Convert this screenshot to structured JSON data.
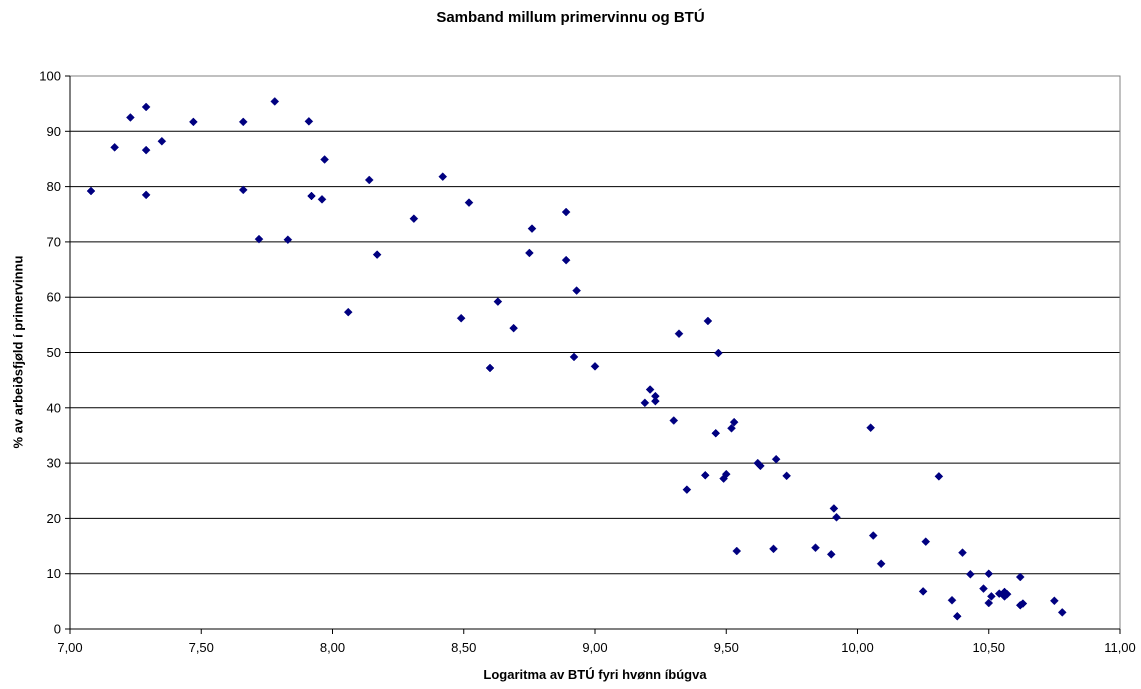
{
  "chart_data": {
    "type": "scatter",
    "title": "Samband millum primervinnu og BTÚ",
    "xlabel": "Logaritma av BTÚ fyri hvønn íbúgva",
    "ylabel": "% av arbeiðsfjøld í primervinnu",
    "xlim": [
      7.0,
      11.0
    ],
    "ylim": [
      0,
      100
    ],
    "x_ticks": [
      "7,00",
      "7,50",
      "8,00",
      "8,50",
      "9,00",
      "9,50",
      "10,00",
      "10,50",
      "11,00"
    ],
    "y_ticks": [
      "0",
      "10",
      "20",
      "30",
      "40",
      "50",
      "60",
      "70",
      "80",
      "90",
      "100"
    ],
    "grid": "horizontal",
    "marker": "diamond",
    "marker_color": "#000080",
    "points": [
      [
        7.08,
        79.2
      ],
      [
        7.17,
        87.1
      ],
      [
        7.23,
        92.5
      ],
      [
        7.29,
        94.4
      ],
      [
        7.29,
        86.6
      ],
      [
        7.29,
        78.5
      ],
      [
        7.35,
        88.2
      ],
      [
        7.47,
        91.7
      ],
      [
        7.66,
        91.7
      ],
      [
        7.66,
        79.4
      ],
      [
        7.72,
        70.5
      ],
      [
        7.78,
        95.4
      ],
      [
        7.83,
        70.4
      ],
      [
        7.91,
        91.8
      ],
      [
        7.92,
        78.3
      ],
      [
        7.96,
        77.7
      ],
      [
        7.97,
        84.9
      ],
      [
        8.06,
        57.3
      ],
      [
        8.14,
        81.2
      ],
      [
        8.17,
        67.7
      ],
      [
        8.31,
        74.2
      ],
      [
        8.42,
        81.8
      ],
      [
        8.49,
        56.2
      ],
      [
        8.52,
        77.1
      ],
      [
        8.6,
        47.2
      ],
      [
        8.63,
        59.2
      ],
      [
        8.69,
        54.4
      ],
      [
        8.75,
        68.0
      ],
      [
        8.76,
        72.4
      ],
      [
        8.89,
        66.7
      ],
      [
        8.89,
        75.4
      ],
      [
        8.92,
        49.2
      ],
      [
        8.93,
        61.2
      ],
      [
        9.0,
        47.5
      ],
      [
        9.19,
        40.9
      ],
      [
        9.21,
        43.3
      ],
      [
        9.23,
        41.2
      ],
      [
        9.23,
        42.1
      ],
      [
        9.3,
        37.7
      ],
      [
        9.32,
        53.4
      ],
      [
        9.35,
        25.2
      ],
      [
        9.42,
        27.8
      ],
      [
        9.43,
        55.7
      ],
      [
        9.46,
        35.4
      ],
      [
        9.47,
        49.9
      ],
      [
        9.49,
        27.2
      ],
      [
        9.5,
        28.0
      ],
      [
        9.52,
        36.3
      ],
      [
        9.53,
        37.4
      ],
      [
        9.54,
        14.1
      ],
      [
        9.62,
        30.0
      ],
      [
        9.63,
        29.5
      ],
      [
        9.68,
        14.5
      ],
      [
        9.69,
        30.7
      ],
      [
        9.73,
        27.7
      ],
      [
        9.84,
        14.7
      ],
      [
        9.9,
        13.5
      ],
      [
        9.91,
        21.8
      ],
      [
        9.92,
        20.2
      ],
      [
        10.05,
        36.4
      ],
      [
        10.06,
        16.9
      ],
      [
        10.09,
        11.8
      ],
      [
        10.25,
        6.8
      ],
      [
        10.26,
        15.8
      ],
      [
        10.31,
        27.6
      ],
      [
        10.36,
        5.2
      ],
      [
        10.38,
        2.3
      ],
      [
        10.4,
        13.8
      ],
      [
        10.43,
        9.9
      ],
      [
        10.48,
        7.3
      ],
      [
        10.5,
        10.0
      ],
      [
        10.5,
        4.7
      ],
      [
        10.51,
        5.9
      ],
      [
        10.54,
        6.4
      ],
      [
        10.56,
        6.7
      ],
      [
        10.56,
        5.9
      ],
      [
        10.57,
        6.3
      ],
      [
        10.62,
        9.4
      ],
      [
        10.62,
        4.3
      ],
      [
        10.63,
        4.6
      ],
      [
        10.75,
        5.1
      ],
      [
        10.78,
        3.0
      ]
    ]
  }
}
